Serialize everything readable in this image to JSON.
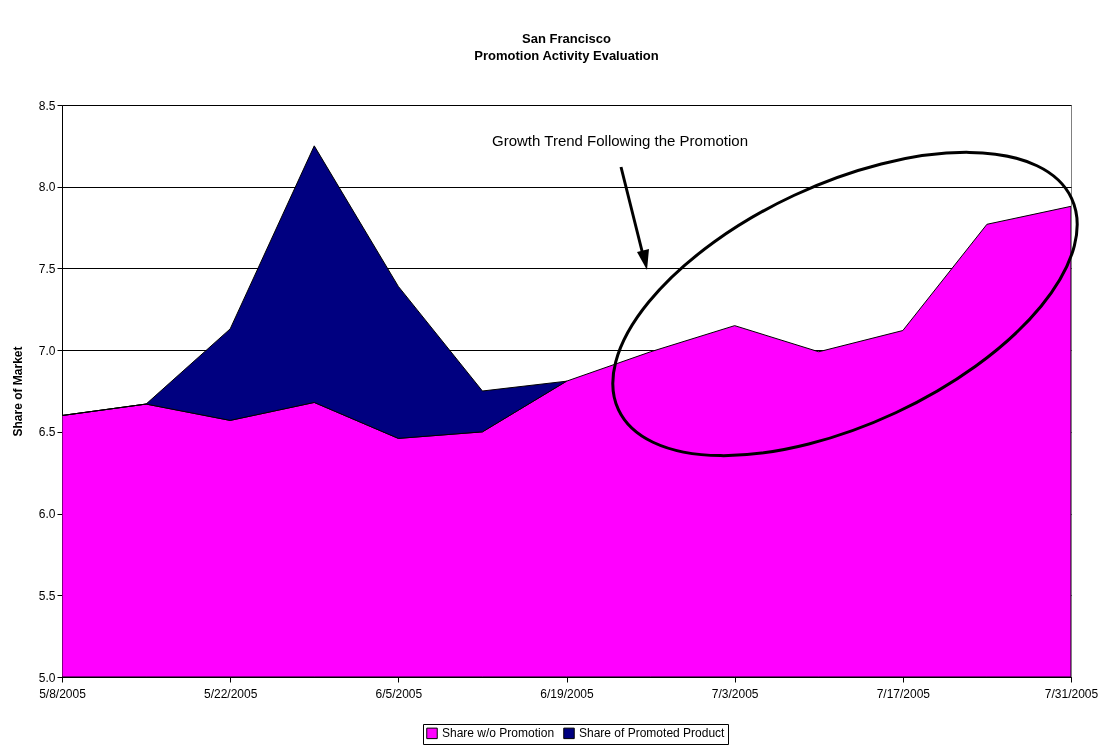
{
  "chart_data": {
    "type": "area",
    "title": "San Francisco\nPromotion Activity Evaluation",
    "ylabel": "Share of Market",
    "x": [
      "2005-05-08",
      "2005-05-15",
      "2005-05-22",
      "2005-05-29",
      "2005-06-05",
      "2005-06-12",
      "2005-06-19",
      "2005-06-26",
      "2005-07-03",
      "2005-07-10",
      "2005-07-17",
      "2005-07-24",
      "2005-07-31"
    ],
    "series": [
      {
        "name": "Share w/o Promotion",
        "color": "#ff00ff",
        "values": [
          6.6,
          6.67,
          6.57,
          6.68,
          6.46,
          6.5,
          6.81,
          6.99,
          7.15,
          6.99,
          7.12,
          7.77,
          7.88
        ]
      },
      {
        "name": "Share of Promoted Product",
        "color": "#000080",
        "values": [
          6.6,
          6.67,
          7.13,
          8.25,
          7.39,
          6.75,
          6.81,
          null,
          null,
          null,
          null,
          null,
          null
        ]
      }
    ],
    "xlim": [
      "2005-05-08",
      "2005-07-31"
    ],
    "xticks": [
      {
        "value": "2005-05-08",
        "label": "5/8/2005"
      },
      {
        "value": "2005-05-22",
        "label": "5/22/2005"
      },
      {
        "value": "2005-06-05",
        "label": "6/5/2005"
      },
      {
        "value": "2005-06-19",
        "label": "6/19/2005"
      },
      {
        "value": "2005-07-03",
        "label": "7/3/2005"
      },
      {
        "value": "2005-07-17",
        "label": "7/17/2005"
      },
      {
        "value": "2005-07-31",
        "label": "7/31/2005"
      }
    ],
    "ylim": [
      5.0,
      8.5
    ],
    "yticks": [
      {
        "value": 5,
        "label": "5.0"
      },
      {
        "value": 5.5,
        "label": "5.5"
      },
      {
        "value": 6,
        "label": "6.0"
      },
      {
        "value": 6.5,
        "label": "6.5"
      },
      {
        "value": 7,
        "label": "7.0"
      },
      {
        "value": 7.5,
        "label": "7.5"
      },
      {
        "value": 8,
        "label": "8.0"
      },
      {
        "value": 8.5,
        "label": "8.5"
      }
    ],
    "grid": "y",
    "legend": "bottom",
    "annotations": [
      "Growth Trend Following the Promotion"
    ]
  }
}
